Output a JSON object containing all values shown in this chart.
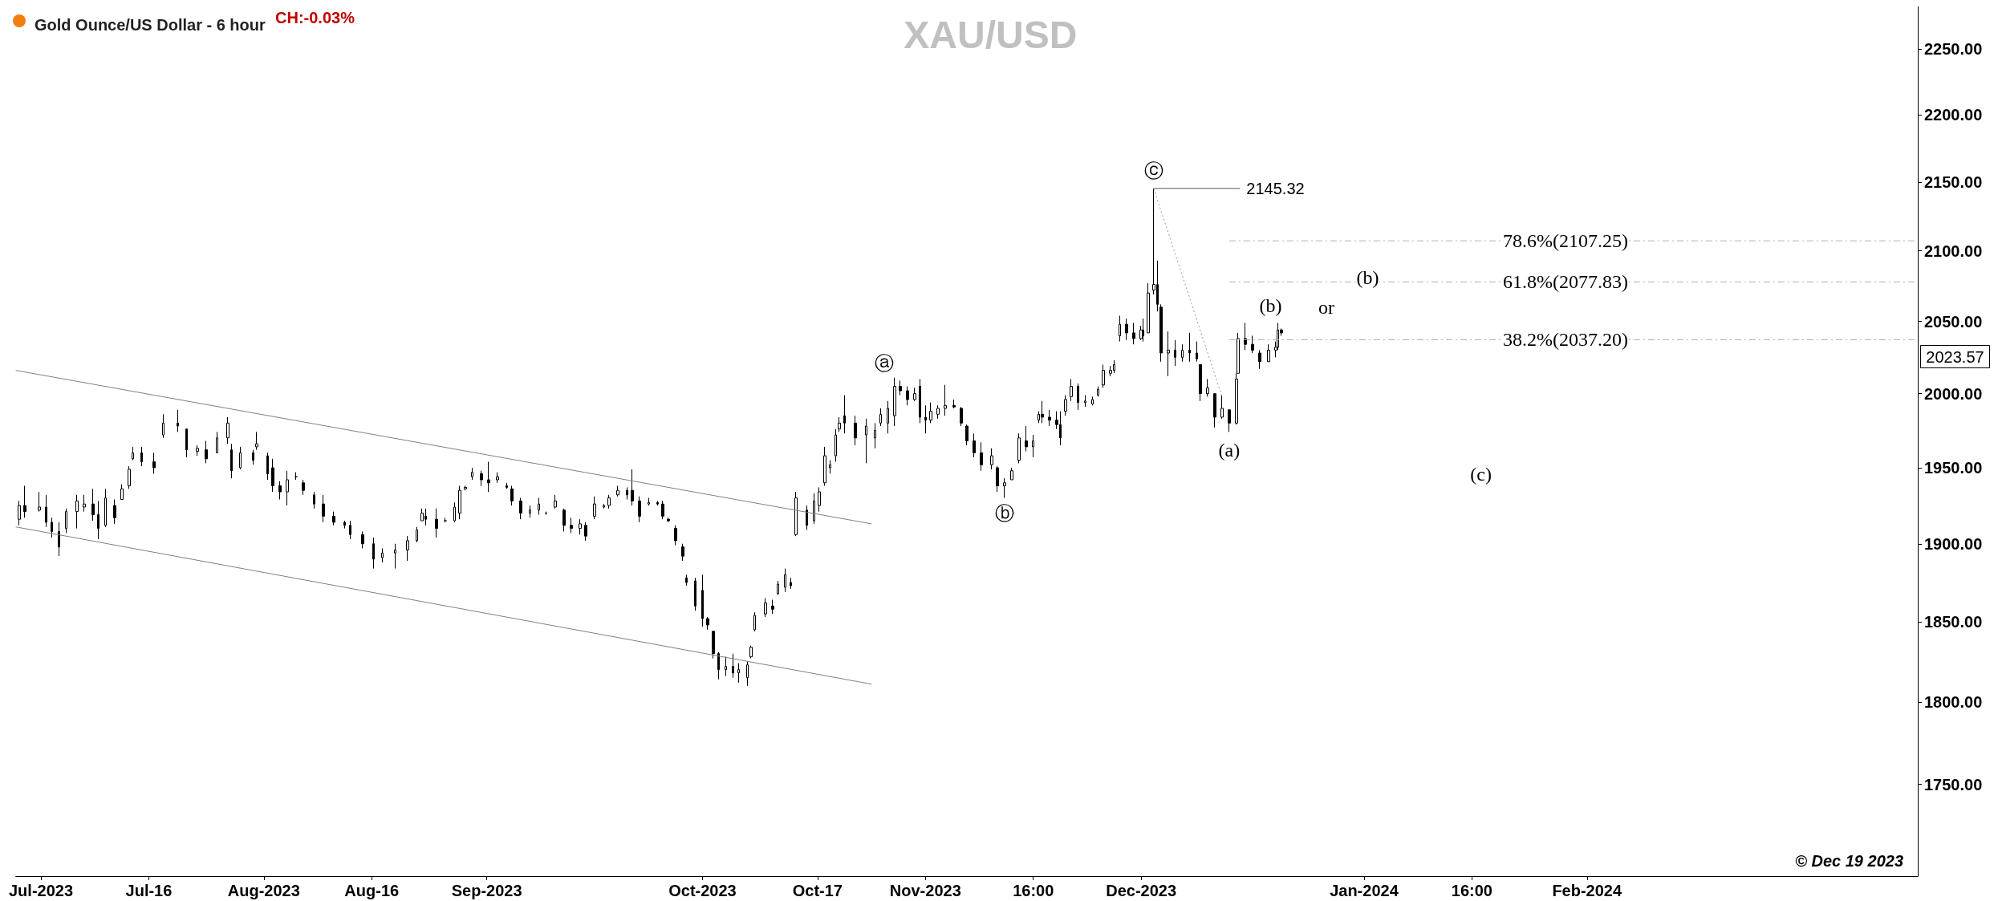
{
  "chart_data": {
    "type": "candlestick",
    "title": "XAU/USD",
    "subtitle": "Gold Ounce/US Dollar - 6 hour",
    "color": "#000000",
    "log": "y",
    "grid": false,
    "xlim": [
      "2023-06-27T12:00",
      "2024-03-18T00:00"
    ],
    "xticks": [
      {
        "value": "2023-07-01",
        "label": "Jul-2023"
      },
      {
        "value": "2023-07-16",
        "label": "Jul-16"
      },
      {
        "value": "2023-08-01",
        "label": "Aug-2023"
      },
      {
        "value": "2023-08-16",
        "label": "Aug-16"
      },
      {
        "value": "2023-09-01",
        "label": "Sep-2023"
      },
      {
        "value": "2023-10-01",
        "label": "Oct-2023"
      },
      {
        "value": "2023-10-17",
        "label": "Oct-17"
      },
      {
        "value": "2023-11-01",
        "label": "Nov-2023"
      },
      {
        "value": "2023-11-16",
        "label": "16:00"
      },
      {
        "value": "2023-12-01",
        "label": "Dec-2023"
      },
      {
        "value": "2024-01-01",
        "label": "Jan-2024"
      },
      {
        "value": "2024-01-16",
        "label": "16:00"
      },
      {
        "value": "2024-02-01",
        "label": "Feb-2024"
      }
    ],
    "ylim": [
      1696,
      2283
    ],
    "yticks": [
      {
        "value": 1750,
        "label": "1750.00"
      },
      {
        "value": 1800,
        "label": "1800.00"
      },
      {
        "value": 1850,
        "label": "1850.00"
      },
      {
        "value": 1900,
        "label": "1900.00"
      },
      {
        "value": 1950,
        "label": "1950.00"
      },
      {
        "value": 2000,
        "label": "2000.00"
      },
      {
        "value": 2050,
        "label": "2050.00"
      },
      {
        "value": 2100,
        "label": "2100.00"
      },
      {
        "value": 2150,
        "label": "2150.00"
      },
      {
        "value": 2200,
        "label": "2200.00"
      },
      {
        "value": 2250,
        "label": "2250.00"
      }
    ],
    "x": [
      "2023-06-28T00:00",
      "2023-06-28T18:00",
      "2023-06-30T18:00",
      "2023-07-01T18:00",
      "2023-07-02T12:00",
      "2023-07-03T12:00",
      "2023-07-04T12:00",
      "2023-07-06T00:00",
      "2023-07-07T00:00",
      "2023-07-08T06:00",
      "2023-07-09T00:00",
      "2023-07-10T00:00",
      "2023-07-11T06:00",
      "2023-07-12T06:00",
      "2023-07-13T06:00",
      "2023-07-13T18:00",
      "2023-07-15T00:00",
      "2023-07-16T18:00",
      "2023-07-18T00:00",
      "2023-07-20T00:00",
      "2023-07-21T06:00",
      "2023-07-22T18:00",
      "2023-07-24T00:00",
      "2023-07-25T12:00",
      "2023-07-27T00:00",
      "2023-07-27T12:00",
      "2023-07-28T18:00",
      "2023-07-30T12:00",
      "2023-07-31T00:00",
      "2023-08-01T12:00",
      "2023-08-02T06:00",
      "2023-08-03T06:00",
      "2023-08-04T06:00",
      "2023-08-05T12:00",
      "2023-08-06T12:00",
      "2023-08-08T00:00",
      "2023-08-09T06:00",
      "2023-08-10T18:00",
      "2023-08-12T06:00",
      "2023-08-13T00:00",
      "2023-08-14T18:00",
      "2023-08-16T06:00",
      "2023-08-17T12:00",
      "2023-08-19T06:00",
      "2023-08-21T00:00",
      "2023-08-22T06:00",
      "2023-08-23T00:00",
      "2023-08-23T12:00",
      "2023-08-25T00:00",
      "2023-08-26T06:00",
      "2023-08-27T12:00",
      "2023-08-28T06:00",
      "2023-08-29T00:00",
      "2023-08-30T00:00",
      "2023-08-31T06:00",
      "2023-09-01T06:00",
      "2023-09-02T12:00",
      "2023-09-03T18:00",
      "2023-09-04T12:00",
      "2023-09-05T18:00",
      "2023-09-07T00:00",
      "2023-09-08T06:00",
      "2023-09-09T06:00",
      "2023-09-10T12:00",
      "2023-09-11T18:00",
      "2023-09-12T18:00",
      "2023-09-14T00:00",
      "2023-09-14T18:00",
      "2023-09-16T00:00",
      "2023-09-17T06:00",
      "2023-09-18T00:00",
      "2023-09-19T06:00",
      "2023-09-20T12:00",
      "2023-09-21T06:00",
      "2023-09-22T06:00",
      "2023-09-23T12:00",
      "2023-09-24T18:00",
      "2023-09-25T12:00",
      "2023-09-26T06:00",
      "2023-09-27T06:00",
      "2023-09-28T06:00",
      "2023-09-28T18:00",
      "2023-09-30T00:00",
      "2023-10-01T00:00",
      "2023-10-01T18:00",
      "2023-10-02T12:00",
      "2023-10-03T06:00",
      "2023-10-04T06:00",
      "2023-10-05T06:00",
      "2023-10-06T00:00",
      "2023-10-07T06:00",
      "2023-10-07T18:00",
      "2023-10-08T06:00",
      "2023-10-09T18:00",
      "2023-10-10T18:00",
      "2023-10-11T12:00",
      "2023-10-12T12:00",
      "2023-10-13T06:00",
      "2023-10-14T00:00",
      "2023-10-15T12:00",
      "2023-10-16T12:00",
      "2023-10-17T06:00",
      "2023-10-18T00:00",
      "2023-10-18T18:00",
      "2023-10-19T12:00",
      "2023-10-20T00:00",
      "2023-10-20T18:00",
      "2023-10-22T06:00",
      "2023-10-23T18:00",
      "2023-10-25T00:00",
      "2023-10-25T18:00",
      "2023-10-26T18:00",
      "2023-10-27T18:00",
      "2023-10-28T12:00",
      "2023-10-29T12:00",
      "2023-10-30T12:00",
      "2023-10-31T06:00",
      "2023-11-01T00:00",
      "2023-11-01T18:00",
      "2023-11-02T18:00",
      "2023-11-03T18:00",
      "2023-11-05T00:00",
      "2023-11-06T00:00",
      "2023-11-06T18:00",
      "2023-11-07T18:00",
      "2023-11-08T18:00",
      "2023-11-10T06:00",
      "2023-11-11T00:00",
      "2023-11-12T00:00",
      "2023-11-13T00:00",
      "2023-11-14T00:00",
      "2023-11-15T00:00",
      "2023-11-16T00:00",
      "2023-11-16T18:00",
      "2023-11-17T06:00",
      "2023-11-18T06:00",
      "2023-11-19T06:00",
      "2023-11-19T18:00",
      "2023-11-20T12:00",
      "2023-11-21T06:00",
      "2023-11-22T06:00",
      "2023-11-23T06:00",
      "2023-11-24T06:00",
      "2023-11-25T00:00",
      "2023-11-25T18:00",
      "2023-11-26T18:00",
      "2023-11-27T06:00",
      "2023-11-28T00:00",
      "2023-11-29T00:00",
      "2023-11-30T00:00",
      "2023-12-01T00:00",
      "2023-12-01T06:00",
      "2023-12-02T00:00",
      "2023-12-02T18:00",
      "2023-12-03T06:00",
      "2023-12-03T18:00",
      "2023-12-04T18:00",
      "2023-12-05T18:00",
      "2023-12-06T18:00",
      "2023-12-07T18:00",
      "2023-12-08T18:00",
      "2023-12-09T06:00",
      "2023-12-10T06:00",
      "2023-12-11T06:00",
      "2023-12-12T06:00",
      "2023-12-13T06:00",
      "2023-12-14T06:00",
      "2023-12-14T12:00",
      "2023-12-15T12:00",
      "2023-12-16T12:00",
      "2023-12-17T12:00",
      "2023-12-18T18:00",
      "2023-12-19T18:00",
      "2023-12-20T00:00",
      "2023-12-20T12:00"
    ],
    "ohlc": [
      [
        1916,
        1928,
        1912,
        1925
      ],
      [
        1925,
        1938,
        1917,
        1921
      ],
      [
        1922,
        1934,
        1921,
        1924
      ],
      [
        1924,
        1932,
        1911,
        1914
      ],
      [
        1914,
        1917,
        1904,
        1908
      ],
      [
        1908,
        1914,
        1892,
        1898
      ],
      [
        1910,
        1923,
        1907,
        1921
      ],
      [
        1921,
        1932,
        1910,
        1928
      ],
      [
        1924,
        1932,
        1921,
        1926
      ],
      [
        1926,
        1936,
        1915,
        1919
      ],
      [
        1919,
        1928,
        1903,
        1910
      ],
      [
        1912,
        1936,
        1911,
        1930
      ],
      [
        1925,
        1929,
        1913,
        1917
      ],
      [
        1929,
        1939,
        1929,
        1936
      ],
      [
        1938,
        1951,
        1936,
        1949
      ],
      [
        1956,
        1964,
        1955,
        1960
      ],
      [
        1960,
        1964,
        1951,
        1954
      ],
      [
        1954,
        1960,
        1946,
        1950
      ],
      [
        1972,
        1986,
        1970,
        1980
      ],
      [
        1980,
        1989,
        1974,
        1978
      ],
      [
        1976,
        1976,
        1957,
        1962
      ],
      [
        1961,
        1965,
        1958,
        1963
      ],
      [
        1962,
        1968,
        1953,
        1956
      ],
      [
        1960,
        1974,
        1960,
        1970
      ],
      [
        1970,
        1984,
        1966,
        1980
      ],
      [
        1962,
        1966,
        1943,
        1948
      ],
      [
        1950,
        1964,
        1949,
        1960
      ],
      [
        1960,
        1962,
        1952,
        1955
      ],
      [
        1964,
        1974,
        1962,
        1966
      ],
      [
        1958,
        1960,
        1942,
        1946
      ],
      [
        1950,
        1956,
        1934,
        1938
      ],
      [
        1938,
        1941,
        1929,
        1934
      ],
      [
        1934,
        1948,
        1925,
        1942
      ],
      [
        1944,
        1947,
        1942,
        1944
      ],
      [
        1940,
        1942,
        1932,
        1935
      ],
      [
        1932,
        1934,
        1923,
        1926
      ],
      [
        1926,
        1932,
        1914,
        1918
      ],
      [
        1918,
        1921,
        1912,
        1914
      ],
      [
        1914,
        1915,
        1910,
        1912
      ],
      [
        1912,
        1915,
        1903,
        1906
      ],
      [
        1906,
        1908,
        1897,
        1900
      ],
      [
        1900,
        1904,
        1884,
        1890
      ],
      [
        1891,
        1897,
        1888,
        1894
      ],
      [
        1894,
        1900,
        1884,
        1896
      ],
      [
        1896,
        1905,
        1889,
        1902
      ],
      [
        1902,
        1911,
        1901,
        1909
      ],
      [
        1915,
        1923,
        1915,
        1920
      ],
      [
        1918,
        1923,
        1912,
        1916
      ],
      [
        1916,
        1923,
        1904,
        1910
      ],
      [
        1915,
        1917,
        1914,
        1915
      ],
      [
        1915,
        1927,
        1914,
        1924
      ],
      [
        1920,
        1938,
        1916,
        1935
      ],
      [
        1936,
        1938,
        1935,
        1937
      ],
      [
        1944,
        1950,
        1942,
        1947
      ],
      [
        1946,
        1948,
        1938,
        1942
      ],
      [
        1942,
        1954,
        1934,
        1940
      ],
      [
        1942,
        1947,
        1940,
        1944
      ],
      [
        1938,
        1940,
        1936,
        1937
      ],
      [
        1936,
        1938,
        1925,
        1928
      ],
      [
        1928,
        1930,
        1916,
        1920
      ],
      [
        1920,
        1925,
        1917,
        1922
      ],
      [
        1922,
        1930,
        1919,
        1926
      ],
      [
        1920,
        1921,
        1919,
        1920
      ],
      [
        1924,
        1932,
        1923,
        1928
      ],
      [
        1922,
        1923,
        1908,
        1912
      ],
      [
        1912,
        1917,
        1907,
        1910
      ],
      [
        1910,
        1916,
        1906,
        1913
      ],
      [
        1912,
        1914,
        1902,
        1905
      ],
      [
        1918,
        1931,
        1916,
        1926
      ],
      [
        1924,
        1926,
        1923,
        1925
      ],
      [
        1925,
        1932,
        1923,
        1930
      ],
      [
        1932,
        1938,
        1931,
        1935
      ],
      [
        1935,
        1937,
        1929,
        1932
      ],
      [
        1935,
        1949,
        1925,
        1928
      ],
      [
        1928,
        1931,
        1914,
        1918
      ],
      [
        1926,
        1930,
        1925,
        1927
      ],
      [
        1927,
        1928,
        1925,
        1926
      ],
      [
        1926,
        1928,
        1916,
        1918
      ],
      [
        1916,
        1917,
        1914,
        1915
      ],
      [
        1910,
        1912,
        1899,
        1902
      ],
      [
        1898,
        1900,
        1889,
        1892
      ],
      [
        1878,
        1880,
        1873,
        1875
      ],
      [
        1876,
        1878,
        1857,
        1860
      ],
      [
        1870,
        1880,
        1847,
        1852
      ],
      [
        1852,
        1853,
        1845,
        1848
      ],
      [
        1844,
        1844,
        1827,
        1830
      ],
      [
        1830,
        1831,
        1814,
        1820
      ],
      [
        1820,
        1828,
        1816,
        1822
      ],
      [
        1822,
        1830,
        1815,
        1818
      ],
      [
        1818,
        1824,
        1812,
        1820
      ],
      [
        1815,
        1825,
        1810,
        1823
      ],
      [
        1828,
        1835,
        1827,
        1834
      ],
      [
        1845,
        1856,
        1844,
        1854
      ],
      [
        1855,
        1865,
        1853,
        1862
      ],
      [
        1860,
        1864,
        1855,
        1858
      ],
      [
        1868,
        1876,
        1867,
        1874
      ],
      [
        1872,
        1884,
        1869,
        1880
      ],
      [
        1875,
        1878,
        1871,
        1873
      ],
      [
        1906,
        1934,
        1905,
        1930
      ],
      [
        1922,
        1925,
        1909,
        1912
      ],
      [
        1915,
        1933,
        1913,
        1928
      ],
      [
        1925,
        1937,
        1921,
        1934
      ],
      [
        1940,
        1964,
        1938,
        1958
      ],
      [
        1950,
        1955,
        1946,
        1952
      ],
      [
        1958,
        1976,
        1954,
        1972
      ],
      [
        1976,
        1984,
        1974,
        1980
      ],
      [
        1985,
        1999,
        1973,
        1980
      ],
      [
        1980,
        1985,
        1965,
        1970
      ],
      [
        1972,
        1983,
        1953,
        1978
      ],
      [
        1970,
        1980,
        1963,
        1975
      ],
      [
        1980,
        1990,
        1978,
        1986
      ],
      [
        1980,
        1995,
        1973,
        1990
      ],
      [
        1985,
        2011,
        1978,
        2005
      ],
      [
        2005,
        2009,
        1999,
        2002
      ],
      [
        2002,
        2005,
        1992,
        1996
      ],
      [
        1996,
        2004,
        1995,
        2000
      ],
      [
        2005,
        2010,
        1980,
        1984
      ],
      [
        1984,
        1992,
        1973,
        1982
      ],
      [
        1982,
        1994,
        1980,
        1988
      ],
      [
        1986,
        1992,
        1983,
        1990
      ],
      [
        1990,
        2006,
        1985,
        1992
      ],
      [
        1992,
        1996,
        1990,
        1991
      ],
      [
        1990,
        1991,
        1978,
        1980
      ],
      [
        1978,
        1979,
        1965,
        1968
      ],
      [
        1968,
        1973,
        1957,
        1960
      ],
      [
        1960,
        1967,
        1948,
        1952
      ],
      [
        1952,
        1963,
        1949,
        1958
      ],
      [
        1950,
        1951,
        1934,
        1938
      ],
      [
        1938,
        1943,
        1930,
        1940
      ],
      [
        1942,
        1950,
        1942,
        1948
      ],
      [
        1955,
        1973,
        1953,
        1970
      ],
      [
        1968,
        1978,
        1961,
        1964
      ],
      [
        1964,
        1972,
        1957,
        1968
      ],
      [
        1982,
        1988,
        1980,
        1986
      ],
      [
        1986,
        1995,
        1980,
        1984
      ],
      [
        1984,
        1989,
        1978,
        1982
      ],
      [
        1982,
        1988,
        1976,
        1979
      ],
      [
        1979,
        1988,
        1965,
        1970
      ],
      [
        1988,
        1999,
        1985,
        1996
      ],
      [
        1998,
        2010,
        1995,
        2005
      ],
      [
        2005,
        2007,
        1989,
        1994
      ],
      [
        1994,
        1999,
        1991,
        1995
      ],
      [
        1993,
        1998,
        1992,
        1996
      ],
      [
        1999,
        2005,
        1998,
        2003
      ],
      [
        2006,
        2020,
        2004,
        2016
      ],
      [
        2014,
        2019,
        2012,
        2016
      ],
      [
        2016,
        2023,
        2014,
        2020
      ],
      [
        2040,
        2054,
        2036,
        2048
      ],
      [
        2048,
        2052,
        2037,
        2042
      ],
      [
        2042,
        2049,
        2034,
        2038
      ],
      [
        2038,
        2047,
        2037,
        2044
      ],
      [
        2044,
        2052,
        2036,
        2040
      ],
      [
        2042,
        2077,
        2042,
        2070
      ],
      [
        2072,
        2145.32,
        2069,
        2076
      ],
      [
        2076,
        2093,
        2057,
        2062
      ],
      [
        2060,
        2062,
        2022,
        2028
      ],
      [
        2028,
        2043,
        2012,
        2030
      ],
      [
        2030,
        2037,
        2019,
        2025
      ],
      [
        2025,
        2034,
        2022,
        2030
      ],
      [
        2030,
        2042,
        2022,
        2028
      ],
      [
        2028,
        2036,
        2022,
        2024
      ],
      [
        2020,
        2020,
        1995,
        2000
      ],
      [
        2000,
        2010,
        1998,
        2004
      ],
      [
        2000,
        2000,
        1977,
        1984
      ],
      [
        1984,
        1999,
        1983,
        1990
      ],
      [
        1989,
        1989,
        1974,
        1980
      ],
      [
        1980,
        2014,
        1979,
        2010
      ],
      [
        2014,
        2042,
        2014,
        2038
      ],
      [
        2038,
        2049,
        2030,
        2034
      ],
      [
        2034,
        2040,
        2028,
        2030
      ],
      [
        2028,
        2030,
        2017,
        2022
      ],
      [
        2022,
        2034,
        2022,
        2030
      ],
      [
        2030,
        2036,
        2025,
        2032
      ],
      [
        2032,
        2049,
        2030,
        2044
      ],
      [
        2044,
        2045,
        2040,
        2042
      ]
    ],
    "series": [
      {
        "type": "line",
        "color": "#808080",
        "line_style": "solid",
        "x": [
          "2023-06-27T12:00",
          "2023-10-24T12:00"
        ],
        "values": [
          2016,
          1913
        ]
      },
      {
        "type": "line",
        "color": "#808080",
        "line_style": "solid",
        "x": [
          "2023-06-27T12:00",
          "2023-10-24T12:00"
        ],
        "values": [
          1911,
          1811
        ]
      },
      {
        "type": "line",
        "name": "2145.32",
        "color": "#555555",
        "line_style": "solid",
        "x": [
          "2023-12-02T18:00",
          "2023-12-14T18:00"
        ],
        "values": [
          2145.32,
          2145.32
        ]
      },
      {
        "type": "line",
        "color": "#999999",
        "line_style": "dotted",
        "x": [
          "2023-12-02T18:00",
          "2023-12-12T06:00"
        ],
        "values": [
          2145.32,
          1998
        ]
      },
      {
        "type": "line",
        "color": "#b0b0b0",
        "line_style": "dashed",
        "x": [
          "2023-12-13T06:00",
          "2024-03-18T00:00"
        ],
        "values": [
          2107.25,
          2107.25
        ]
      },
      {
        "type": "line",
        "color": "#b0b0b0",
        "line_style": "dashed",
        "x": [
          "2023-12-13T06:00",
          "2024-03-18T00:00"
        ],
        "values": [
          2077.83,
          2077.83
        ]
      },
      {
        "type": "line",
        "color": "#b0b0b0",
        "line_style": "dashed",
        "x": [
          "2023-12-13T06:00",
          "2024-03-18T00:00"
        ],
        "values": [
          2037.2,
          2037.2
        ]
      }
    ],
    "annotations": [
      "CH:-0.03%",
      "© Dec 19 2023",
      "2023.57",
      {
        "text": "ⓐ",
        "x": "2023-10-26T06:00",
        "y": 2021
      },
      {
        "text": "ⓑ",
        "x": "2023-11-12T00:00",
        "y": 1920
      },
      {
        "text": "ⓒ",
        "x": "2023-12-02T18:00",
        "y": 2158
      },
      {
        "text": "(a)",
        "x": "2023-12-13T06:00",
        "y": 1962
      },
      {
        "text": "(b)",
        "x": "2023-12-19T00:00",
        "y": 2061
      },
      {
        "text": "or",
        "x": "2023-12-26T18:00",
        "y": 2060
      },
      {
        "text": "(b)",
        "x": "2024-01-01T12:00",
        "y": 2081
      },
      {
        "text": "(c)",
        "x": "2024-01-17T06:00",
        "y": 1946
      },
      {
        "text": "78.6%(2107.25)",
        "x": "2024-01-29T00:00",
        "y": 2107.25
      },
      {
        "text": "61.8%(2077.83)",
        "x": "2024-01-29T00:00",
        "y": 2077.83
      },
      {
        "text": "38.2%(2037.20)",
        "x": "2024-01-29T00:00",
        "y": 2037.2
      }
    ]
  }
}
